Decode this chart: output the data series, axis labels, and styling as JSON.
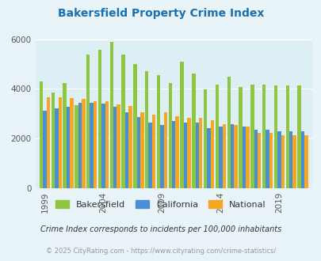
{
  "title": "Bakersfield Property Crime Index",
  "title_color": "#1a6faf",
  "subtitle": "Crime Index corresponds to incidents per 100,000 inhabitants",
  "footer": "© 2025 CityRating.com - https://www.cityrating.com/crime-statistics/",
  "years": [
    1999,
    2000,
    2001,
    2002,
    2003,
    2004,
    2005,
    2006,
    2007,
    2008,
    2009,
    2010,
    2011,
    2012,
    2013,
    2014,
    2015,
    2016,
    2017,
    2018,
    2019,
    2020,
    2021
  ],
  "bakersfield": [
    4280,
    3860,
    4230,
    3330,
    5380,
    5580,
    5880,
    5380,
    4990,
    4720,
    4550,
    4230,
    5080,
    4620,
    3980,
    4170,
    4500,
    4060,
    4170,
    4170,
    4120,
    4120,
    4120
  ],
  "california": [
    3100,
    3200,
    3280,
    3440,
    3420,
    3390,
    3270,
    3060,
    2870,
    2650,
    2540,
    2690,
    2630,
    2640,
    2410,
    2480,
    2580,
    2480,
    2340,
    2340,
    2280,
    2280,
    2280
  ],
  "national": [
    3640,
    3640,
    3620,
    3600,
    3510,
    3490,
    3380,
    3290,
    3060,
    2950,
    3060,
    2900,
    2840,
    2830,
    2730,
    2570,
    2540,
    2470,
    2230,
    2230,
    2110,
    2110,
    2110
  ],
  "bar_color_bak": "#8dc63f",
  "bar_color_cal": "#4a8fd4",
  "bar_color_nat": "#f5a623",
  "bg_color": "#e8f4f8",
  "plot_bg": "#ddeef5",
  "ylim": [
    0,
    6000
  ],
  "yticks": [
    0,
    2000,
    4000,
    6000
  ],
  "xtick_years": [
    1999,
    2004,
    2009,
    2014,
    2019
  ],
  "figsize": [
    4.06,
    3.3
  ],
  "dpi": 100
}
